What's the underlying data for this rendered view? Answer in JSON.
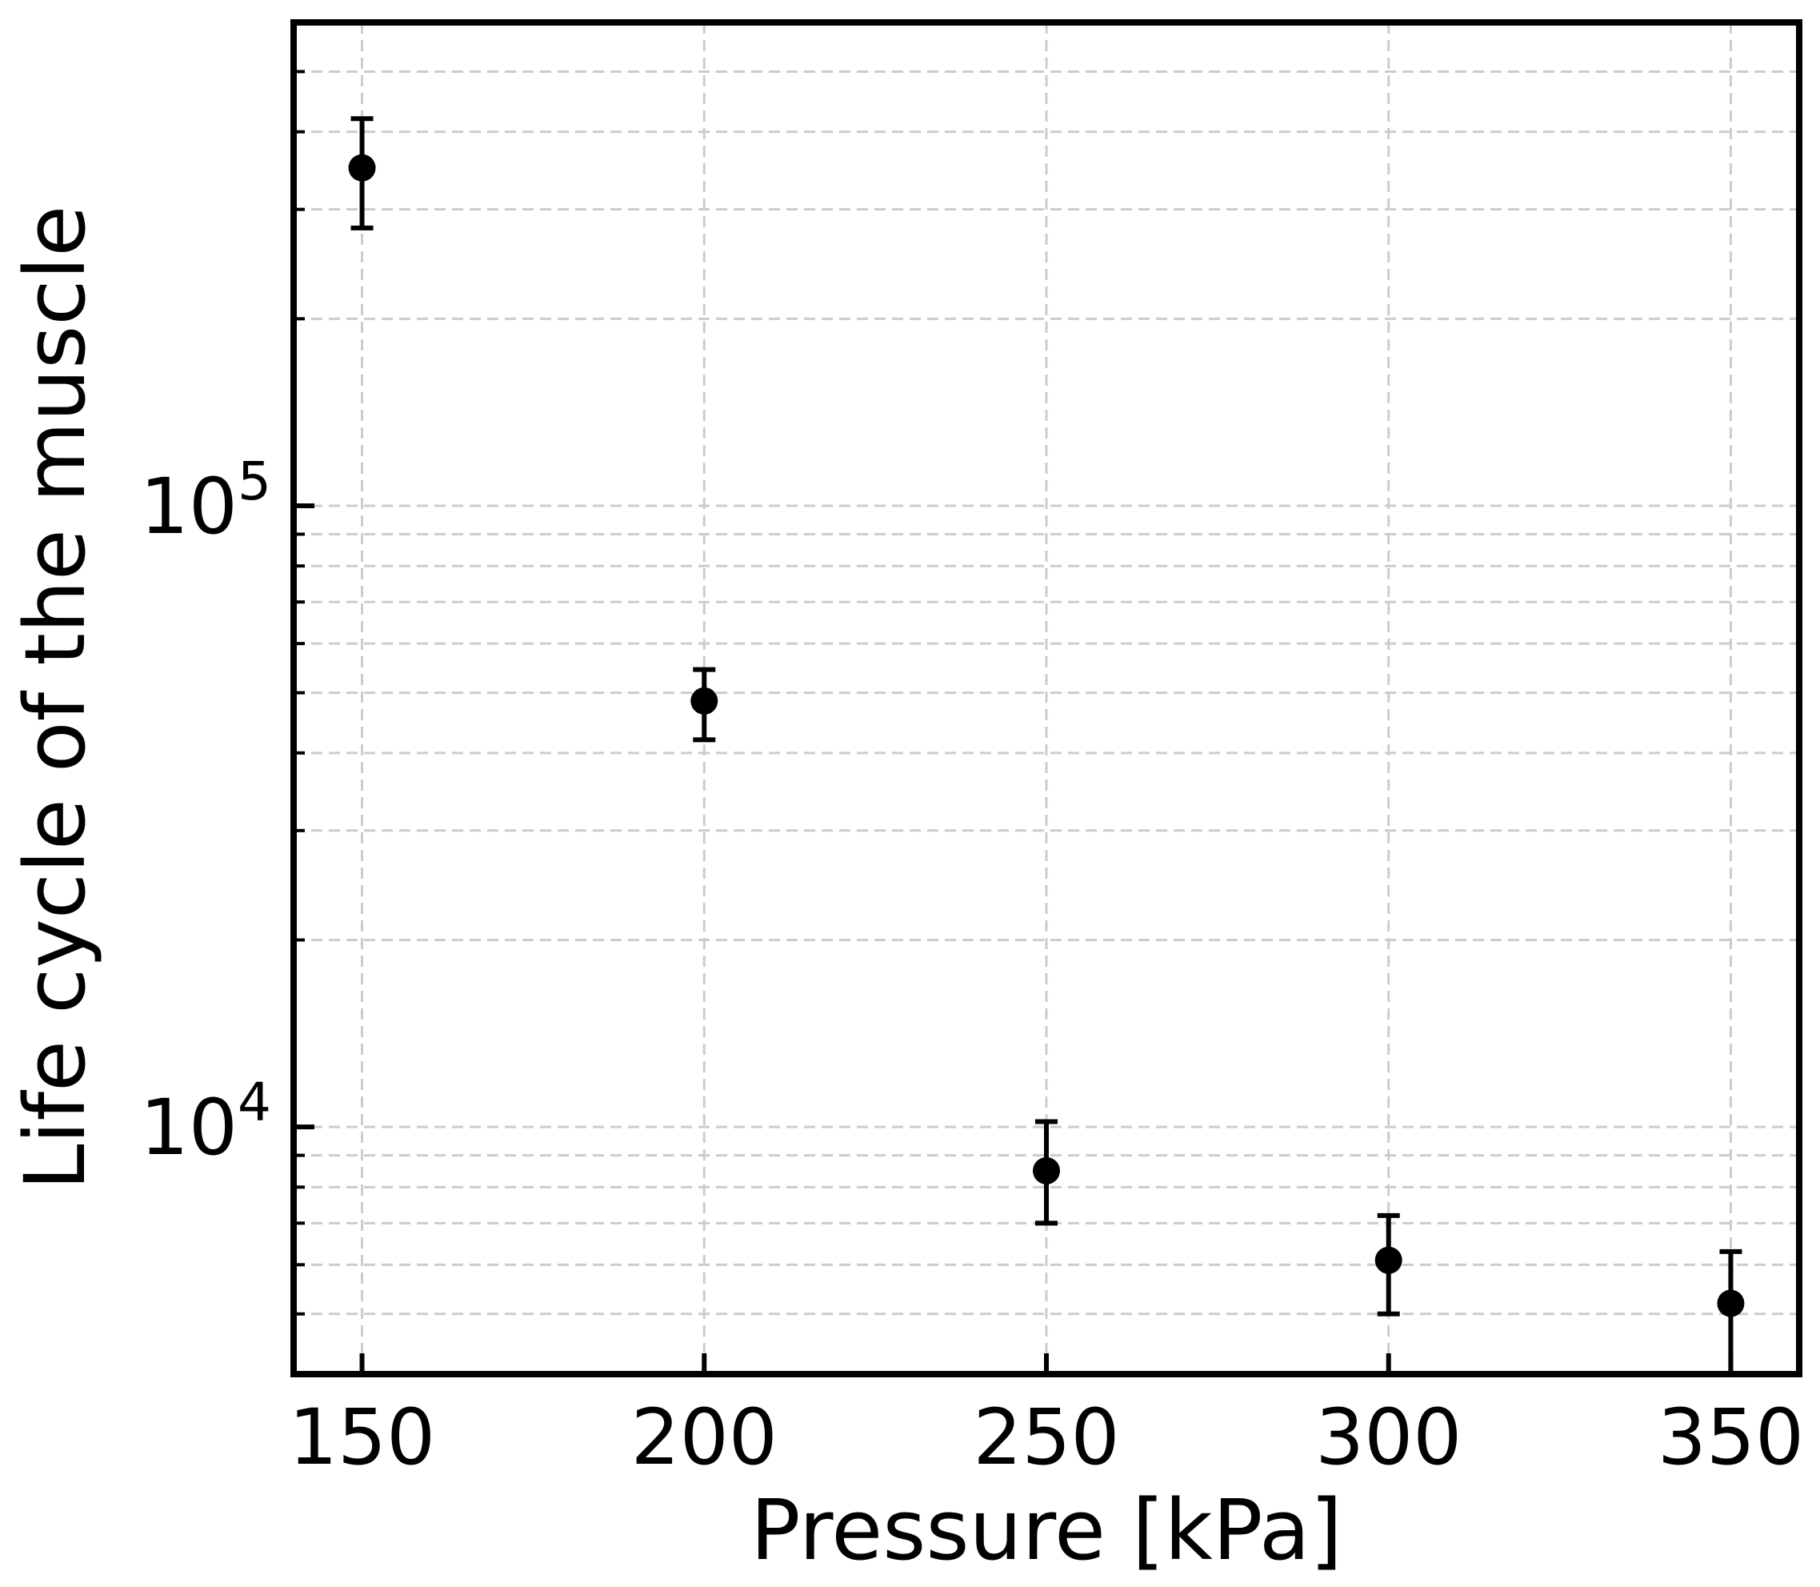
{
  "chart_data": {
    "type": "scatter",
    "xlabel": "Pressure [kPa]",
    "ylabel": "Life cycle of the muscle",
    "x_ticks": [
      "150",
      "200",
      "250",
      "300",
      "350"
    ],
    "y_ticks": [
      {
        "base": "10",
        "exp": "4",
        "value": 10000
      },
      {
        "base": "10",
        "exp": "5",
        "value": 100000
      }
    ],
    "xlim": [
      140,
      360
    ],
    "ylim": [
      4000,
      600000
    ],
    "y_scale": "log",
    "grid": true,
    "grid_style": "dashed",
    "marker_color": "#000000",
    "points": [
      {
        "x": 150,
        "y": 350000,
        "y_low": 280000,
        "y_high": 420000
      },
      {
        "x": 200,
        "y": 48500,
        "y_low": 42000,
        "y_high": 54500
      },
      {
        "x": 250,
        "y": 8500,
        "y_low": 7000,
        "y_high": 10200
      },
      {
        "x": 300,
        "y": 6100,
        "y_low": 5000,
        "y_high": 7200
      },
      {
        "x": 350,
        "y": 5200,
        "y_low": 4000,
        "y_high": 6300
      }
    ]
  }
}
